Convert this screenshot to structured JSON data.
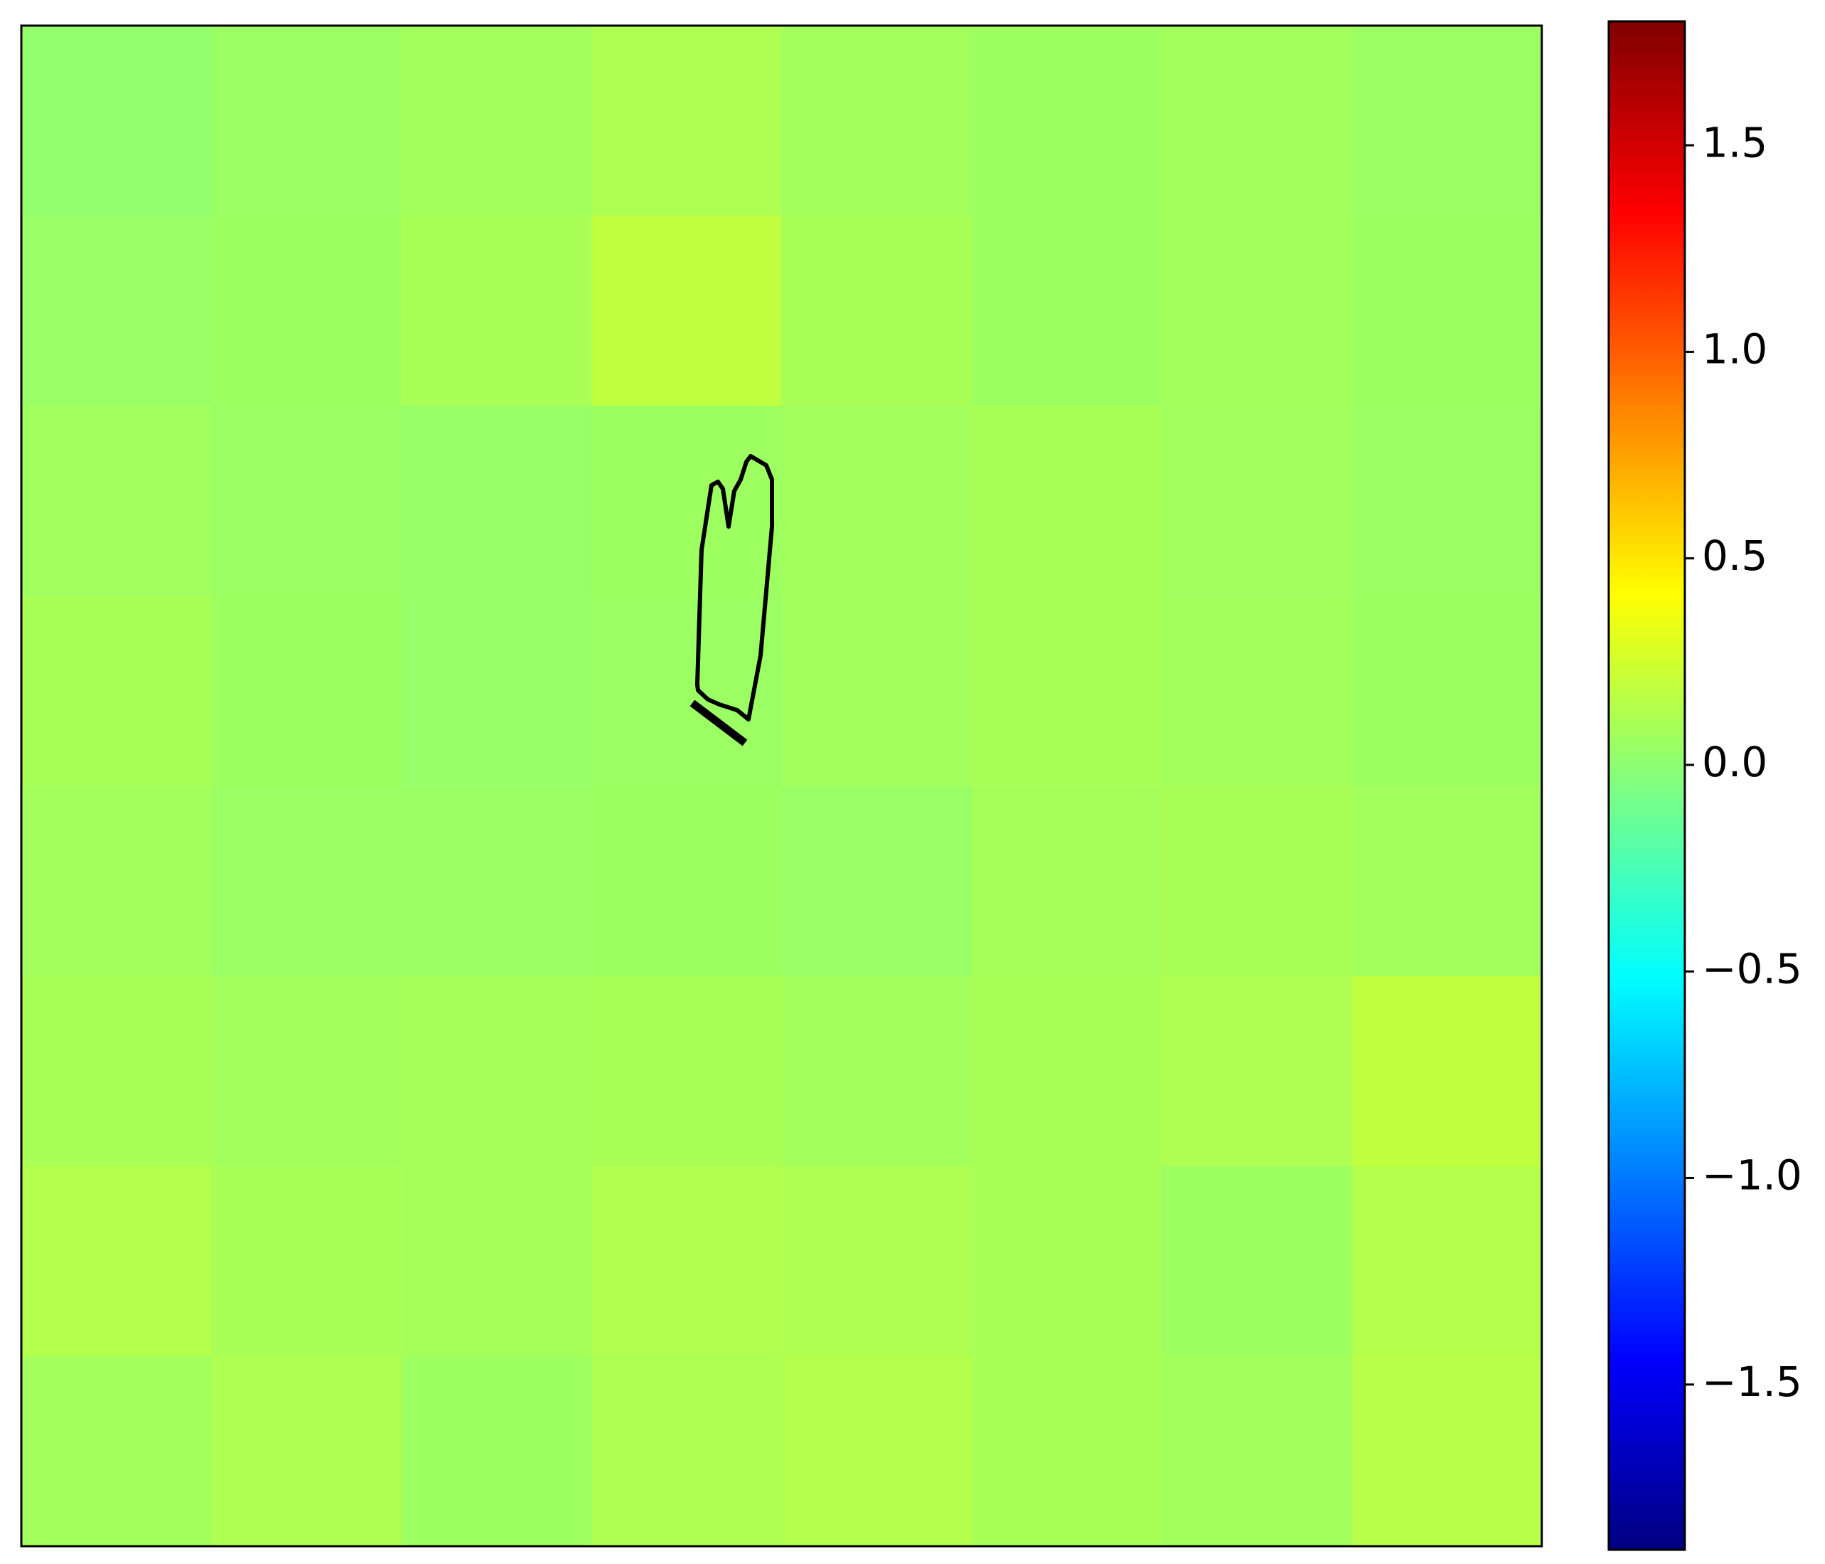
{
  "chart_data": {
    "type": "heatmap",
    "colormap": "jet",
    "z": [
      [
        0.02,
        0.05,
        0.08,
        0.12,
        0.08,
        0.06,
        0.08,
        0.05
      ],
      [
        0.04,
        0.06,
        0.1,
        0.18,
        0.1,
        0.06,
        0.08,
        0.06
      ],
      [
        0.07,
        0.05,
        0.03,
        0.06,
        0.08,
        0.1,
        0.07,
        0.05
      ],
      [
        0.1,
        0.06,
        0.03,
        0.05,
        0.08,
        0.1,
        0.08,
        0.06
      ],
      [
        0.08,
        0.05,
        0.05,
        0.06,
        0.04,
        0.09,
        0.1,
        0.08
      ],
      [
        0.1,
        0.08,
        0.09,
        0.1,
        0.08,
        0.1,
        0.12,
        0.18
      ],
      [
        0.14,
        0.1,
        0.09,
        0.13,
        0.12,
        0.1,
        0.06,
        0.14
      ],
      [
        0.08,
        0.12,
        0.06,
        0.12,
        0.14,
        0.1,
        0.08,
        0.15
      ]
    ],
    "colorbar_lim": [
      -1.9,
      1.8
    ],
    "colorbar_ticks": [
      {
        "value": -1.5,
        "label": "−1.5"
      },
      {
        "value": -1.0,
        "label": "−1.0"
      },
      {
        "value": -0.5,
        "label": "−0.5"
      },
      {
        "value": 0,
        "label": "0.0"
      },
      0.5,
      {
        "value": 1.0,
        "label": "1.0"
      },
      1.5
    ]
  }
}
